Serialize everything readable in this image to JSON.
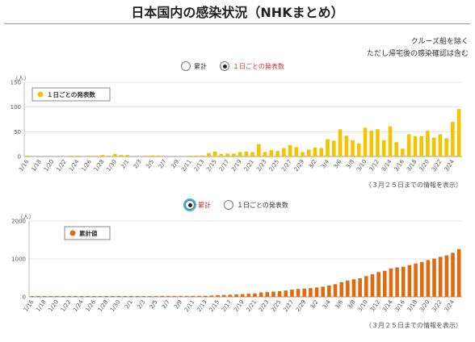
{
  "header": {
    "title": "日本国内の感染状況（NHKまとめ）",
    "note1": "クルーズ船を除く",
    "note2": "ただし帰宅後の感染確認は含む"
  },
  "toggle_top": {
    "cumulative_label": "累計",
    "daily_label": "１日ごとの発表数",
    "selected": "daily"
  },
  "toggle_bottom": {
    "cumulative_label": "累計",
    "daily_label": "１日ごとの発表数",
    "selected": "cumulative"
  },
  "chart_data": [
    {
      "type": "bar",
      "ylabel": "（人）",
      "ylim": [
        0,
        150
      ],
      "yticks": [
        0,
        50,
        100,
        150
      ],
      "legend": "１日ごとの発表数",
      "legend_position": "top-left",
      "color": "#f5c400",
      "x": [
        "1/16",
        "1/17",
        "1/18",
        "1/19",
        "1/20",
        "1/21",
        "1/22",
        "1/23",
        "1/24",
        "1/25",
        "1/26",
        "1/27",
        "1/28",
        "1/29",
        "1/30",
        "1/31",
        "2/1",
        "2/2",
        "2/3",
        "2/4",
        "2/5",
        "2/6",
        "2/7",
        "2/8",
        "2/9",
        "2/10",
        "2/11",
        "2/12",
        "2/13",
        "2/14",
        "2/15",
        "2/16",
        "2/17",
        "2/18",
        "2/19",
        "2/20",
        "2/21",
        "2/22",
        "2/23",
        "2/24",
        "2/25",
        "2/26",
        "2/27",
        "2/28",
        "2/29",
        "3/1",
        "3/2",
        "3/3",
        "3/4",
        "3/5",
        "3/6",
        "3/7",
        "3/8",
        "3/9",
        "3/10",
        "3/11",
        "3/12",
        "3/13",
        "3/14",
        "3/15",
        "3/16",
        "3/17",
        "3/18",
        "3/19",
        "3/20",
        "3/21",
        "3/22",
        "3/23",
        "3/24",
        "3/25"
      ],
      "series": [
        {
          "values": [
            1,
            0,
            0,
            0,
            0,
            0,
            0,
            1,
            1,
            0,
            1,
            1,
            3,
            1,
            5,
            3,
            3,
            0,
            0,
            1,
            2,
            2,
            0,
            0,
            0,
            0,
            1,
            1,
            2,
            7,
            10,
            5,
            6,
            6,
            9,
            10,
            9,
            25,
            9,
            13,
            11,
            17,
            23,
            19,
            9,
            14,
            18,
            17,
            35,
            32,
            55,
            42,
            33,
            26,
            58,
            52,
            55,
            33,
            61,
            29,
            16,
            45,
            41,
            41,
            52,
            38,
            45,
            37,
            70,
            96
          ]
        }
      ],
      "xtick_labels": [
        "1/16",
        "1/18",
        "1/20",
        "1/22",
        "1/24",
        "1/26",
        "1/28",
        "1/30",
        "2/1",
        "2/3",
        "2/5",
        "2/7",
        "2/9",
        "2/11",
        "2/13",
        "2/15",
        "2/17",
        "2/19",
        "2/21",
        "2/23",
        "2/25",
        "2/27",
        "2/29",
        "3/2",
        "3/4",
        "3/6",
        "3/8",
        "3/10",
        "3/12",
        "3/14",
        "3/16",
        "3/18",
        "3/20",
        "3/22",
        "3/24"
      ],
      "caption": "（３月２５日までの情報を表示）"
    },
    {
      "type": "bar",
      "ylabel": "（人）",
      "ylim": [
        0,
        2000
      ],
      "yticks": [
        0,
        1000,
        2000
      ],
      "legend": "累計値",
      "legend_position": "top-left",
      "color": "#e06a10",
      "x": [
        "1/16",
        "1/17",
        "1/18",
        "1/19",
        "1/20",
        "1/21",
        "1/22",
        "1/23",
        "1/24",
        "1/25",
        "1/26",
        "1/27",
        "1/28",
        "1/29",
        "1/30",
        "1/31",
        "2/1",
        "2/2",
        "2/3",
        "2/4",
        "2/5",
        "2/6",
        "2/7",
        "2/8",
        "2/9",
        "2/10",
        "2/11",
        "2/12",
        "2/13",
        "2/14",
        "2/15",
        "2/16",
        "2/17",
        "2/18",
        "2/19",
        "2/20",
        "2/21",
        "2/22",
        "2/23",
        "2/24",
        "2/25",
        "2/26",
        "2/27",
        "2/28",
        "2/29",
        "3/1",
        "3/2",
        "3/3",
        "3/4",
        "3/5",
        "3/6",
        "3/7",
        "3/8",
        "3/9",
        "3/10",
        "3/11",
        "3/12",
        "3/13",
        "3/14",
        "3/15",
        "3/16",
        "3/17",
        "3/18",
        "3/19",
        "3/20",
        "3/21",
        "3/22",
        "3/23",
        "3/24",
        "3/25"
      ],
      "series": [
        {
          "values": [
            1,
            1,
            1,
            1,
            1,
            1,
            1,
            2,
            3,
            3,
            4,
            5,
            8,
            9,
            14,
            17,
            20,
            20,
            20,
            21,
            23,
            25,
            25,
            25,
            25,
            25,
            26,
            27,
            29,
            36,
            46,
            51,
            57,
            63,
            72,
            82,
            91,
            116,
            125,
            138,
            149,
            166,
            189,
            208,
            217,
            231,
            249,
            266,
            301,
            333,
            388,
            430,
            463,
            489,
            547,
            599,
            654,
            687,
            748,
            777,
            793,
            838,
            879,
            920,
            972,
            1010,
            1055,
            1092,
            1162,
            1258
          ]
        }
      ],
      "xtick_labels": [
        "1/16",
        "1/18",
        "1/20",
        "1/22",
        "1/24",
        "1/26",
        "1/28",
        "1/30",
        "2/1",
        "2/3",
        "2/5",
        "2/7",
        "2/9",
        "2/11",
        "2/13",
        "2/15",
        "2/17",
        "2/19",
        "2/21",
        "2/23",
        "2/25",
        "2/27",
        "2/29",
        "3/2",
        "3/4",
        "3/6",
        "3/8",
        "3/10",
        "3/12",
        "3/14",
        "3/16",
        "3/18",
        "3/20",
        "3/22",
        "3/24"
      ],
      "caption": "（３月２５日までの情報を表示）"
    }
  ]
}
